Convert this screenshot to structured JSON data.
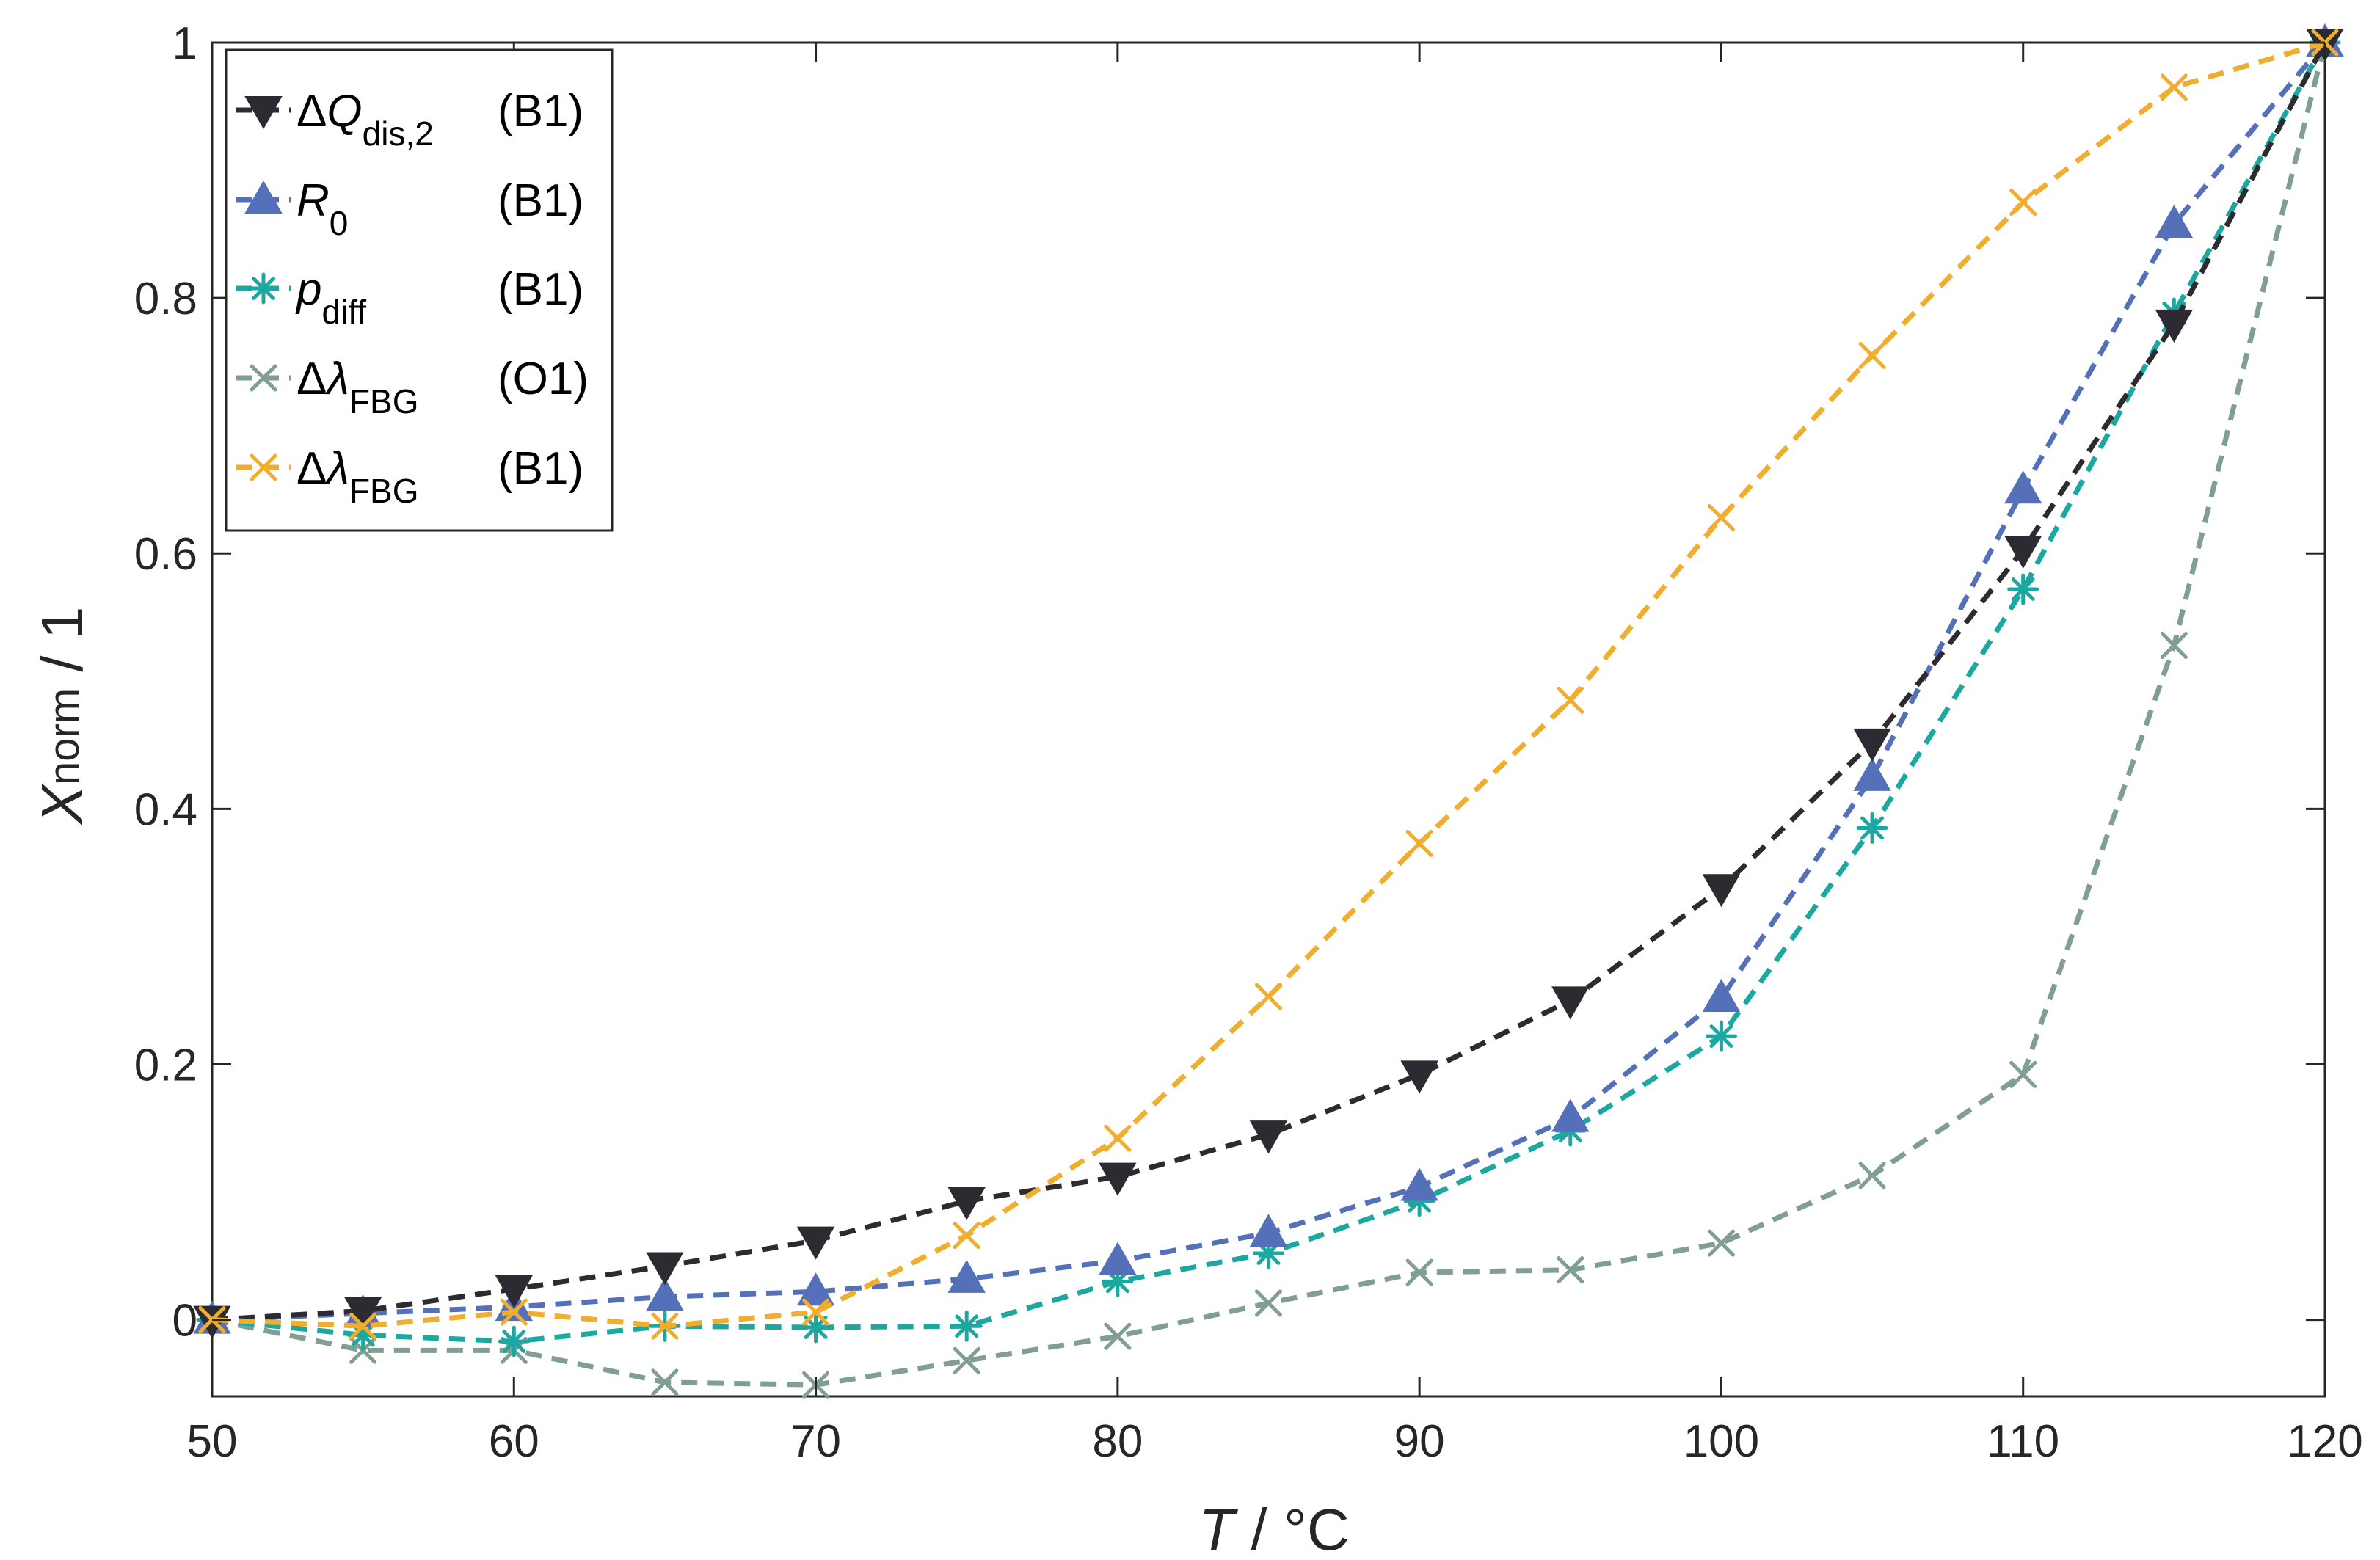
{
  "chart_data": {
    "type": "line",
    "title": "",
    "xlabel": {
      "var": "T",
      "unit": " / °C"
    },
    "ylabel": {
      "main": "X",
      "sub": "norm",
      "unit": " / 1"
    },
    "xlim": [
      50,
      120
    ],
    "ylim": [
      -0.06,
      1
    ],
    "xticks": [
      50,
      60,
      70,
      80,
      90,
      100,
      110,
      120
    ],
    "yticks": [
      0,
      0.2,
      0.4,
      0.6,
      0.8,
      1
    ],
    "ytick_labels": [
      "0",
      "0.2",
      "0.4",
      "0.6",
      "0.8",
      "1"
    ],
    "grid": false,
    "legend_position": "top-left",
    "x": [
      50,
      55,
      60,
      65,
      70,
      75,
      80,
      85,
      90,
      95,
      100,
      105,
      110,
      115,
      120
    ],
    "series": [
      {
        "key": "dQ",
        "name": "ΔQdis,2 (B1)",
        "label_main": "ΔQ",
        "label_sub": "dis,2",
        "label_suffix": "(B1)",
        "color": "#2b2b31",
        "marker": "triangle-down",
        "values": [
          0,
          0.007,
          0.024,
          0.042,
          0.062,
          0.093,
          0.112,
          0.145,
          0.192,
          0.25,
          0.338,
          0.452,
          0.603,
          0.78,
          1.0
        ]
      },
      {
        "key": "R0",
        "name": "R0 (B1)",
        "label_main": "R",
        "label_sub": "0",
        "label_suffix": "(B1)",
        "color": "#5470b8",
        "marker": "triangle-up",
        "values": [
          0,
          0.005,
          0.01,
          0.018,
          0.022,
          0.032,
          0.046,
          0.068,
          0.104,
          0.158,
          0.252,
          0.425,
          0.65,
          0.858,
          1.0
        ]
      },
      {
        "key": "pdiff",
        "name": "pdiff (B1)",
        "label_main": "p",
        "label_sub": "diff",
        "label_suffix": "(B1)",
        "color": "#1ca8a0",
        "marker": "asterisk",
        "values": [
          0,
          -0.012,
          -0.017,
          -0.005,
          -0.006,
          -0.005,
          0.03,
          0.052,
          0.093,
          0.148,
          0.222,
          0.385,
          0.572,
          0.788,
          1.0
        ]
      },
      {
        "key": "lamO1",
        "name": "ΔλFBG (O1)",
        "label_main": "Δλ",
        "label_sub": "FBG",
        "label_suffix": "(O1)",
        "color": "#809e92",
        "marker": "x",
        "values": [
          0,
          -0.024,
          -0.024,
          -0.049,
          -0.051,
          -0.032,
          -0.013,
          0.013,
          0.037,
          0.039,
          0.06,
          0.113,
          0.192,
          0.528,
          1.0
        ]
      },
      {
        "key": "lamB1",
        "name": "ΔλFBG (B1)",
        "label_main": "Δλ",
        "label_sub": "FBG",
        "label_suffix": "(B1)",
        "color": "#f0ad2e",
        "marker": "x",
        "values": [
          0,
          -0.005,
          0.006,
          -0.005,
          0.006,
          0.066,
          0.142,
          0.253,
          0.373,
          0.485,
          0.628,
          0.755,
          0.875,
          0.965,
          1.0
        ]
      }
    ]
  }
}
